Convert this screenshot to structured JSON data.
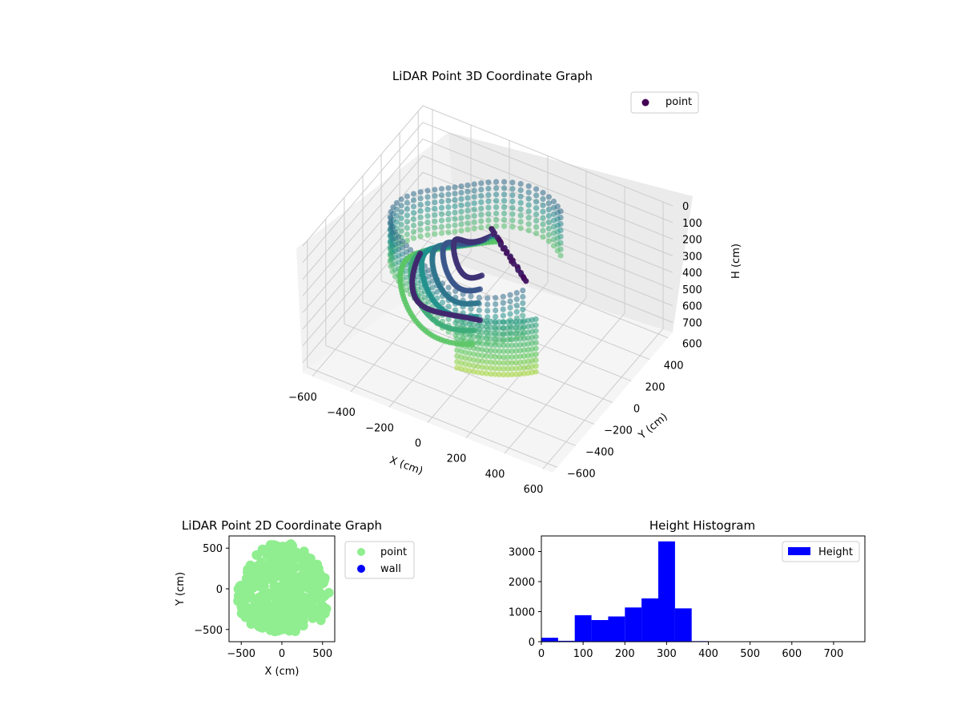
{
  "chart_data": [
    {
      "type": "scatter",
      "projection": "3d",
      "title": "LiDAR Point 3D Coordinate Graph",
      "xlabel": "X (cm)",
      "ylabel": "Y (cm)",
      "zlabel": "H (cm)",
      "xlim": [
        -650,
        650
      ],
      "ylim": [
        -650,
        650
      ],
      "zlim": [
        0,
        760
      ],
      "z_inverted": true,
      "xticks": [
        "−600",
        "−400",
        "−200",
        "0",
        "200",
        "400",
        "600"
      ],
      "yticks": [
        "−600",
        "−400",
        "−200",
        "0",
        "200",
        "400",
        "600"
      ],
      "zticks": [
        "0",
        "100",
        "200",
        "300",
        "400",
        "500",
        "600",
        "700"
      ],
      "grid": true,
      "colormap": "viridis",
      "legend": {
        "placement": "top-right",
        "entries": [
          {
            "label": "point",
            "color": "#440154"
          }
        ]
      }
    },
    {
      "type": "scatter",
      "title": "LiDAR Point 2D Coordinate Graph",
      "xlabel": "X (cm)",
      "ylabel": "Y (cm)",
      "xlim": [
        -650,
        650
      ],
      "ylim": [
        -650,
        650
      ],
      "xticks": [
        -500,
        0,
        500
      ],
      "yticks": [
        -500,
        0,
        500
      ],
      "series": [
        {
          "name": "point",
          "color": "#90ee90"
        },
        {
          "name": "wall",
          "color": "#0000ff"
        }
      ],
      "legend": {
        "placement": "outside-right"
      }
    },
    {
      "type": "bar",
      "subtype": "histogram",
      "title": "Height Histogram",
      "series": [
        {
          "name": "Height",
          "color": "#0000ff"
        }
      ],
      "bin_edges": [
        0,
        40,
        80,
        120,
        160,
        200,
        240,
        280,
        320,
        360,
        400,
        440,
        480,
        520,
        560,
        600,
        640,
        680,
        720,
        760
      ],
      "values": [
        130,
        30,
        880,
        720,
        840,
        1140,
        1440,
        3340,
        1110,
        20,
        0,
        0,
        0,
        0,
        0,
        0,
        0,
        0,
        0
      ],
      "xlim": [
        0,
        775
      ],
      "ylim": [
        0,
        3520
      ],
      "xticks": [
        0,
        100,
        200,
        300,
        400,
        500,
        600,
        700
      ],
      "yticks": [
        0,
        1000,
        2000,
        3000
      ],
      "legend": {
        "placement": "top-right"
      }
    }
  ]
}
